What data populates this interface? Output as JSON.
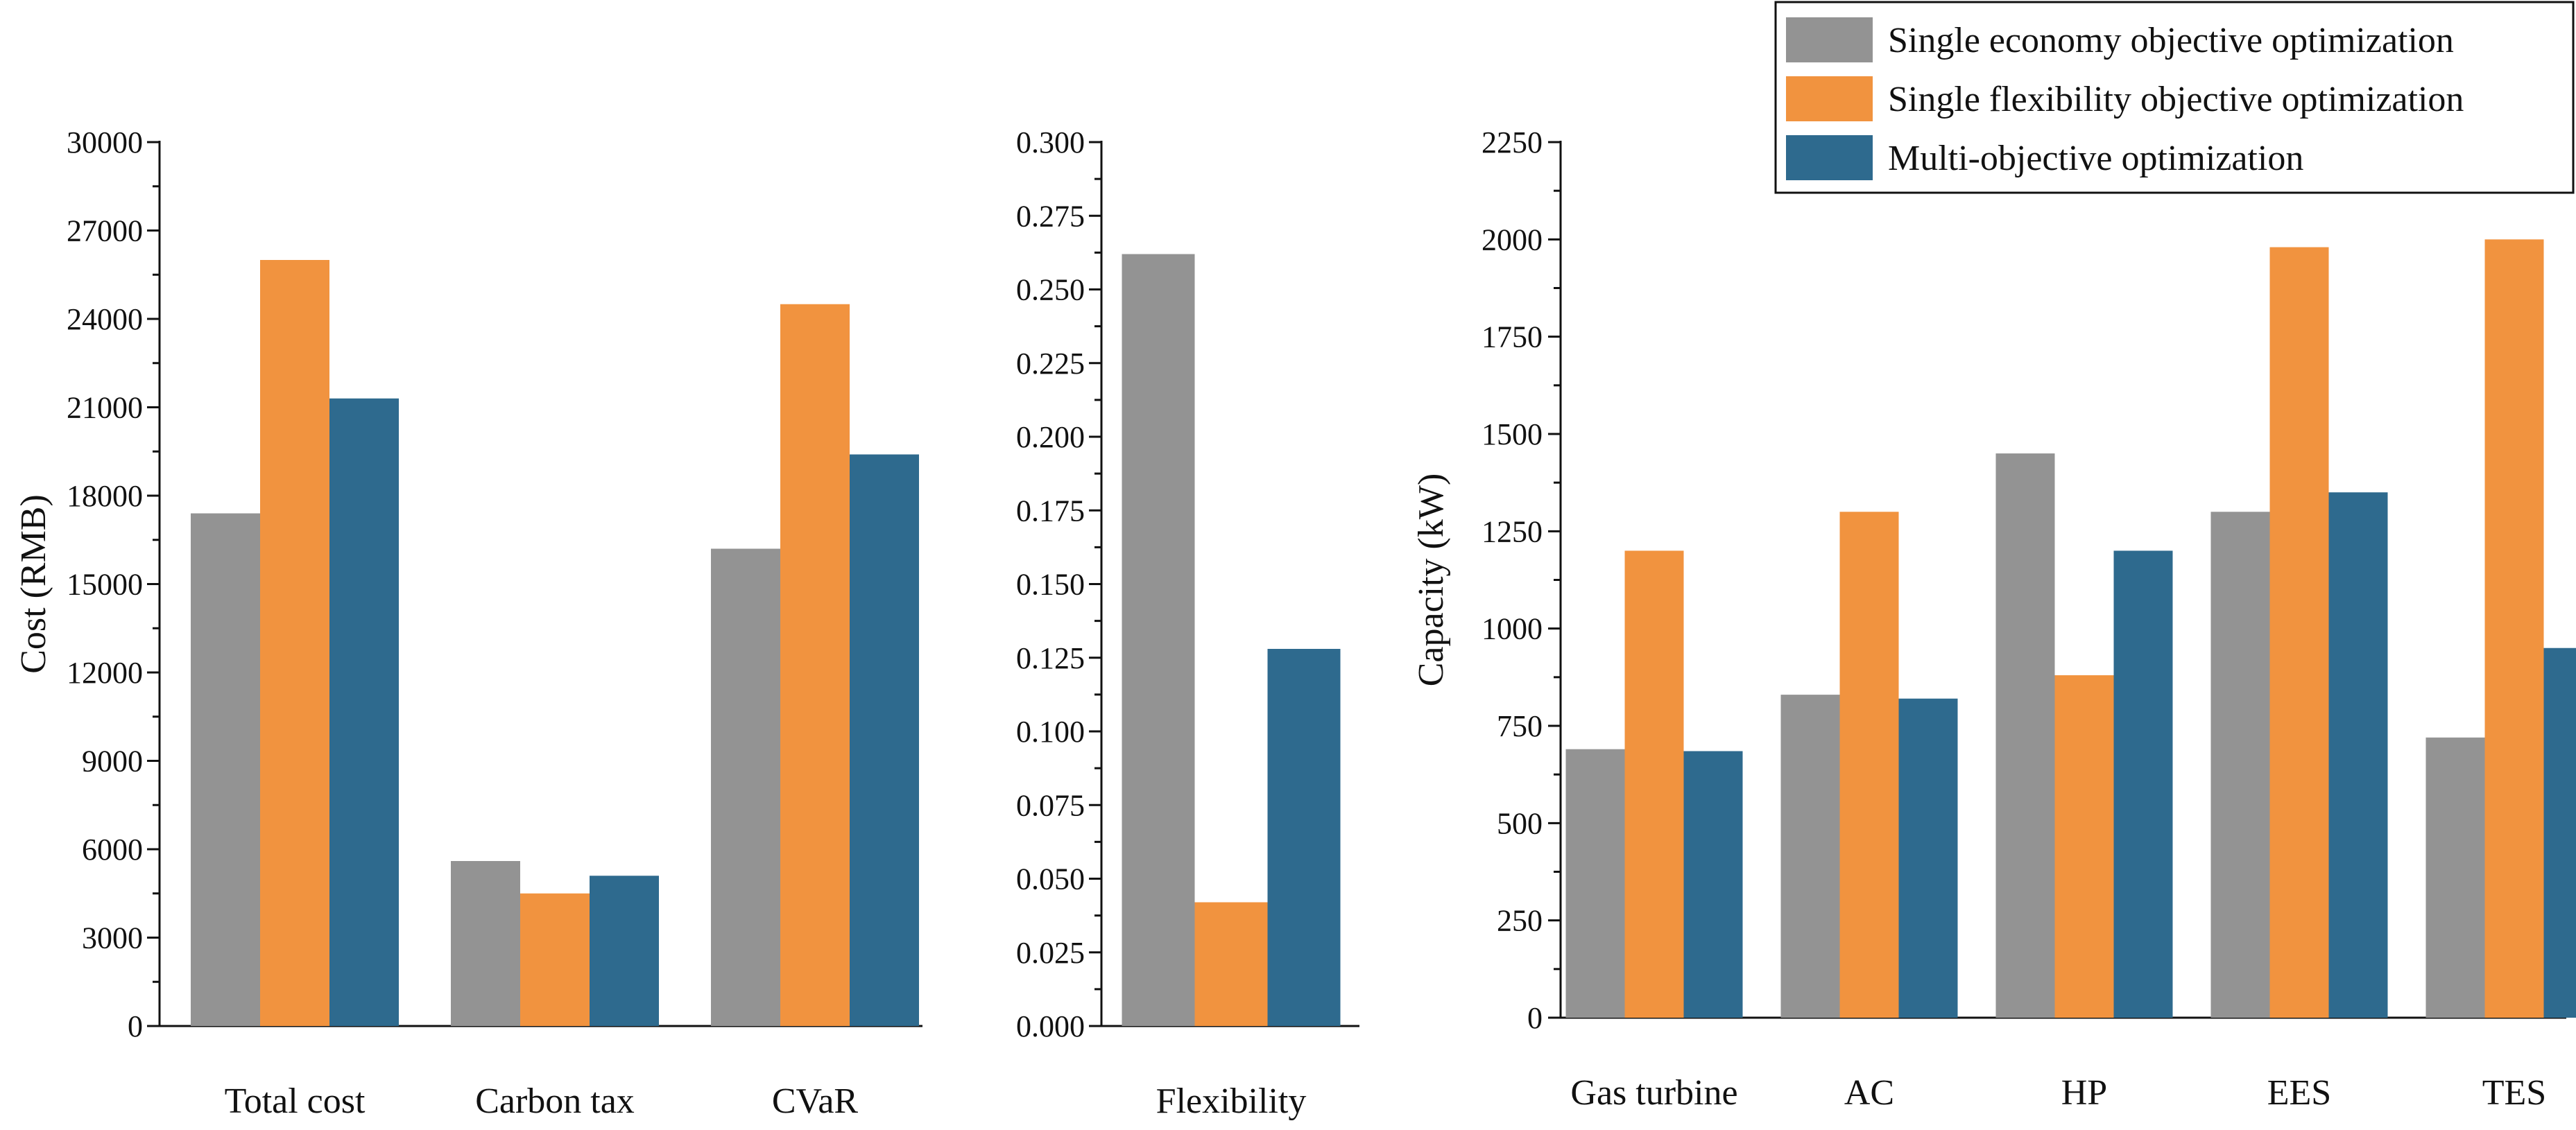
{
  "legend": {
    "position": "top-right",
    "entries": [
      {
        "label": "Single economy objective optimization",
        "color": "#939393"
      },
      {
        "label": "Single flexibility objective optimization",
        "color": "#F1933F"
      },
      {
        "label": "Multi-objective optimization",
        "color": "#2E6A8E"
      }
    ]
  },
  "chart_data": [
    {
      "type": "bar",
      "title": "",
      "xlabel": "",
      "ylabel": "Cost (RMB)",
      "ylim": [
        0,
        30000
      ],
      "yticks": [
        "0",
        "3000",
        "6000",
        "9000",
        "12000",
        "15000",
        "18000",
        "21000",
        "24000",
        "27000",
        "30000"
      ],
      "categories": [
        "Total cost",
        "Carbon tax",
        "CVaR"
      ],
      "series": [
        {
          "name": "Single economy objective optimization",
          "values": [
            17400,
            5600,
            16200
          ]
        },
        {
          "name": "Single flexibility objective optimization",
          "values": [
            26000,
            4500,
            24500
          ]
        },
        {
          "name": "Multi-objective optimization",
          "values": [
            21300,
            5100,
            19400
          ]
        }
      ]
    },
    {
      "type": "bar",
      "title": "",
      "xlabel": "",
      "ylabel": "",
      "ylim": [
        0,
        0.3
      ],
      "yticks": [
        "0.000",
        "0.025",
        "0.050",
        "0.075",
        "0.100",
        "0.125",
        "0.150",
        "0.175",
        "0.200",
        "0.225",
        "0.250",
        "0.275",
        "0.300"
      ],
      "categories": [
        "Flexibility"
      ],
      "series": [
        {
          "name": "Single economy objective optimization",
          "values": [
            0.262
          ]
        },
        {
          "name": "Single flexibility objective optimization",
          "values": [
            0.042
          ]
        },
        {
          "name": "Multi-objective optimization",
          "values": [
            0.128
          ]
        }
      ]
    },
    {
      "type": "bar",
      "title": "",
      "xlabel": "",
      "ylabel": "Capacity (kW)",
      "ylim": [
        0,
        2250
      ],
      "yticks": [
        "0",
        "250",
        "500",
        "750",
        "1000",
        "1250",
        "1500",
        "1750",
        "2000",
        "2250"
      ],
      "categories": [
        "Gas turbine",
        "AC",
        "HP",
        "EES",
        "TES"
      ],
      "series": [
        {
          "name": "Single economy objective optimization",
          "values": [
            690,
            830,
            1450,
            1300,
            720
          ]
        },
        {
          "name": "Single flexibility objective optimization",
          "values": [
            1200,
            1300,
            880,
            1980,
            2000
          ]
        },
        {
          "name": "Multi-objective optimization",
          "values": [
            685,
            820,
            1200,
            1350,
            950
          ]
        }
      ]
    }
  ]
}
